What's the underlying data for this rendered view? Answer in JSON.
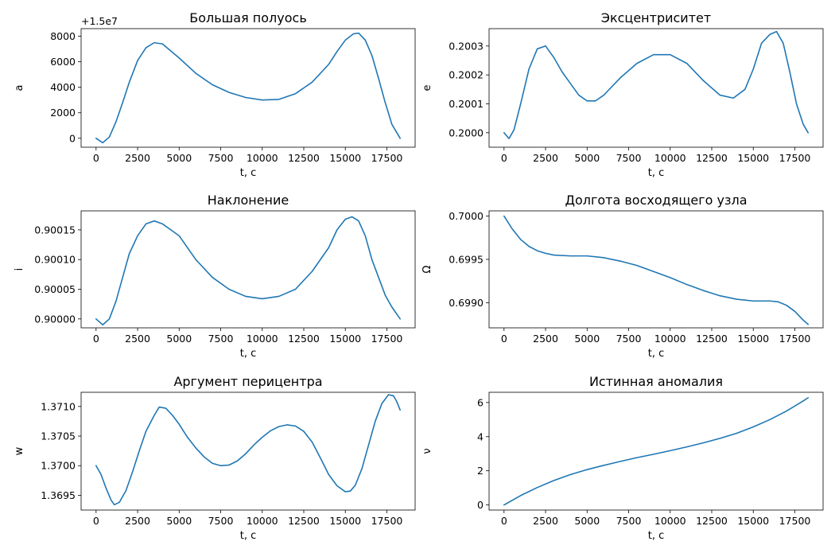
{
  "chart_data": [
    {
      "type": "line",
      "title": "Большая полуось",
      "xlabel": "t, с",
      "ylabel": "a",
      "y_offset_label": "+1.5e7",
      "color": "#1f77b4",
      "xlim": [
        -900,
        19200
      ],
      "ylim": [
        -700,
        8600
      ],
      "xticks": [
        0,
        2500,
        5000,
        7500,
        10000,
        12500,
        15000,
        17500
      ],
      "yticks": [
        0,
        2000,
        4000,
        6000,
        8000
      ],
      "ytick_labels": [
        "0",
        "2000",
        "4000",
        "6000",
        "8000"
      ],
      "x": [
        0,
        400,
        800,
        1200,
        1600,
        2000,
        2500,
        3000,
        3500,
        4000,
        5000,
        6000,
        7000,
        8000,
        9000,
        10000,
        11000,
        12000,
        13000,
        14000,
        14500,
        15000,
        15500,
        15800,
        16200,
        16600,
        17000,
        17400,
        17800,
        18300
      ],
      "y": [
        0,
        -350,
        100,
        1300,
        2800,
        4400,
        6100,
        7100,
        7500,
        7400,
        6300,
        5100,
        4200,
        3600,
        3200,
        3000,
        3050,
        3500,
        4400,
        5800,
        6800,
        7700,
        8200,
        8250,
        7700,
        6500,
        4700,
        2800,
        1100,
        0
      ]
    },
    {
      "type": "line",
      "title": "Эксцентриситет",
      "xlabel": "t, с",
      "ylabel": "e",
      "color": "#1f77b4",
      "xlim": [
        -900,
        19200
      ],
      "ylim": [
        0.19995,
        0.20036
      ],
      "xticks": [
        0,
        2500,
        5000,
        7500,
        10000,
        12500,
        15000,
        17500
      ],
      "yticks": [
        0.2,
        0.2001,
        0.2002,
        0.2003
      ],
      "ytick_labels": [
        "0.2000",
        "0.2001",
        "0.2002",
        "0.2003"
      ],
      "x": [
        0,
        300,
        600,
        1000,
        1500,
        2000,
        2500,
        3000,
        3500,
        4000,
        4500,
        5000,
        5500,
        6000,
        7000,
        8000,
        9000,
        10000,
        11000,
        12000,
        13000,
        13800,
        14500,
        15000,
        15500,
        16000,
        16400,
        16800,
        17200,
        17600,
        18000,
        18300
      ],
      "y": [
        0.2,
        0.19998,
        0.20001,
        0.2001,
        0.20022,
        0.20029,
        0.2003,
        0.20026,
        0.20021,
        0.20017,
        0.20013,
        0.20011,
        0.20011,
        0.20013,
        0.20019,
        0.20024,
        0.20027,
        0.20027,
        0.20024,
        0.20018,
        0.20013,
        0.20012,
        0.20015,
        0.20022,
        0.20031,
        0.20034,
        0.20035,
        0.20031,
        0.20021,
        0.2001,
        0.20003,
        0.2
      ]
    },
    {
      "type": "line",
      "title": "Наклонение",
      "xlabel": "t, с",
      "ylabel": "i",
      "color": "#1f77b4",
      "xlim": [
        -900,
        19200
      ],
      "ylim": [
        0.899985,
        0.900182
      ],
      "xticks": [
        0,
        2500,
        5000,
        7500,
        10000,
        12500,
        15000,
        17500
      ],
      "yticks": [
        0.9,
        0.90005,
        0.9001,
        0.90015
      ],
      "ytick_labels": [
        "0.90000",
        "0.90005",
        "0.90010",
        "0.90015"
      ],
      "x": [
        0,
        400,
        800,
        1200,
        1600,
        2000,
        2500,
        3000,
        3500,
        4000,
        4500,
        5000,
        6000,
        7000,
        8000,
        9000,
        10000,
        11000,
        12000,
        13000,
        14000,
        14500,
        15000,
        15400,
        15800,
        16200,
        16600,
        17000,
        17400,
        17800,
        18300
      ],
      "y": [
        0.9,
        0.89999,
        0.9,
        0.90003,
        0.90007,
        0.90011,
        0.90014,
        0.90016,
        0.900165,
        0.90016,
        0.90015,
        0.90014,
        0.9001,
        0.90007,
        0.90005,
        0.900038,
        0.900034,
        0.900038,
        0.90005,
        0.90008,
        0.90012,
        0.90015,
        0.900168,
        0.900172,
        0.900165,
        0.90014,
        0.9001,
        0.90007,
        0.90004,
        0.90002,
        0.9
      ]
    },
    {
      "type": "line",
      "title": "Долгота восходящего узла",
      "xlabel": "t, с",
      "ylabel": "Ω",
      "color": "#1f77b4",
      "xlim": [
        -900,
        19200
      ],
      "ylim": [
        0.69871,
        0.70006
      ],
      "xticks": [
        0,
        2500,
        5000,
        7500,
        10000,
        12500,
        15000,
        17500
      ],
      "yticks": [
        0.699,
        0.6995,
        0.7
      ],
      "ytick_labels": [
        "0.6990",
        "0.6995",
        "0.7000"
      ],
      "x": [
        0,
        500,
        1000,
        1500,
        2000,
        2500,
        3000,
        4000,
        5000,
        6000,
        7000,
        8000,
        9000,
        10000,
        11000,
        12000,
        13000,
        14000,
        15000,
        16000,
        16500,
        17000,
        17500,
        18000,
        18300
      ],
      "y": [
        0.7,
        0.69985,
        0.69973,
        0.69965,
        0.6996,
        0.69957,
        0.69955,
        0.69954,
        0.69954,
        0.69952,
        0.69948,
        0.69943,
        0.69936,
        0.69929,
        0.69921,
        0.69914,
        0.69908,
        0.69904,
        0.69902,
        0.69902,
        0.69901,
        0.69897,
        0.6989,
        0.6988,
        0.69875
      ]
    },
    {
      "type": "line",
      "title": "Аргумент перицентра",
      "xlabel": "t, с",
      "ylabel": "w",
      "color": "#1f77b4",
      "xlim": [
        -900,
        19200
      ],
      "ylim": [
        1.36925,
        1.37124
      ],
      "xticks": [
        0,
        2500,
        5000,
        7500,
        10000,
        12500,
        15000,
        17500
      ],
      "yticks": [
        1.3695,
        1.37,
        1.3705,
        1.371
      ],
      "ytick_labels": [
        "1.3695",
        "1.3700",
        "1.3705",
        "1.3710"
      ],
      "x": [
        0,
        300,
        600,
        900,
        1100,
        1400,
        1800,
        2200,
        2600,
        3000,
        3500,
        3800,
        4200,
        4600,
        5000,
        5500,
        6000,
        6500,
        7000,
        7500,
        8000,
        8500,
        9000,
        9500,
        10000,
        10500,
        11000,
        11500,
        12000,
        12500,
        13000,
        13500,
        14000,
        14500,
        15000,
        15300,
        15600,
        16000,
        16400,
        16800,
        17200,
        17600,
        17900,
        18100,
        18300
      ],
      "y": [
        1.37,
        1.36985,
        1.36962,
        1.36942,
        1.36934,
        1.36938,
        1.36958,
        1.3699,
        1.37025,
        1.37058,
        1.37085,
        1.37099,
        1.37097,
        1.37085,
        1.3707,
        1.37048,
        1.3703,
        1.37015,
        1.37004,
        1.37,
        1.37001,
        1.37008,
        1.3702,
        1.37035,
        1.37048,
        1.37059,
        1.37066,
        1.37069,
        1.37067,
        1.37058,
        1.3704,
        1.37013,
        1.36985,
        1.36966,
        1.36956,
        1.36957,
        1.36967,
        1.36995,
        1.37035,
        1.37075,
        1.37105,
        1.3712,
        1.37118,
        1.37108,
        1.37094
      ]
    },
    {
      "type": "line",
      "title": "Истинная аномалия",
      "xlabel": "t, с",
      "ylabel": "ν",
      "color": "#1f77b4",
      "xlim": [
        -900,
        19200
      ],
      "ylim": [
        -0.3,
        6.6
      ],
      "xticks": [
        0,
        2500,
        5000,
        7500,
        10000,
        12500,
        15000,
        17500
      ],
      "yticks": [
        0,
        2,
        4,
        6
      ],
      "ytick_labels": [
        "0",
        "2",
        "4",
        "6"
      ],
      "x": [
        0,
        1000,
        2000,
        3000,
        4000,
        5000,
        6000,
        7000,
        8000,
        9000,
        10000,
        11000,
        12000,
        13000,
        14000,
        15000,
        16000,
        17000,
        18000,
        18300
      ],
      "y": [
        0,
        0.55,
        1.02,
        1.43,
        1.78,
        2.07,
        2.32,
        2.55,
        2.77,
        2.97,
        3.18,
        3.4,
        3.64,
        3.9,
        4.2,
        4.57,
        5.0,
        5.5,
        6.09,
        6.28
      ]
    }
  ]
}
